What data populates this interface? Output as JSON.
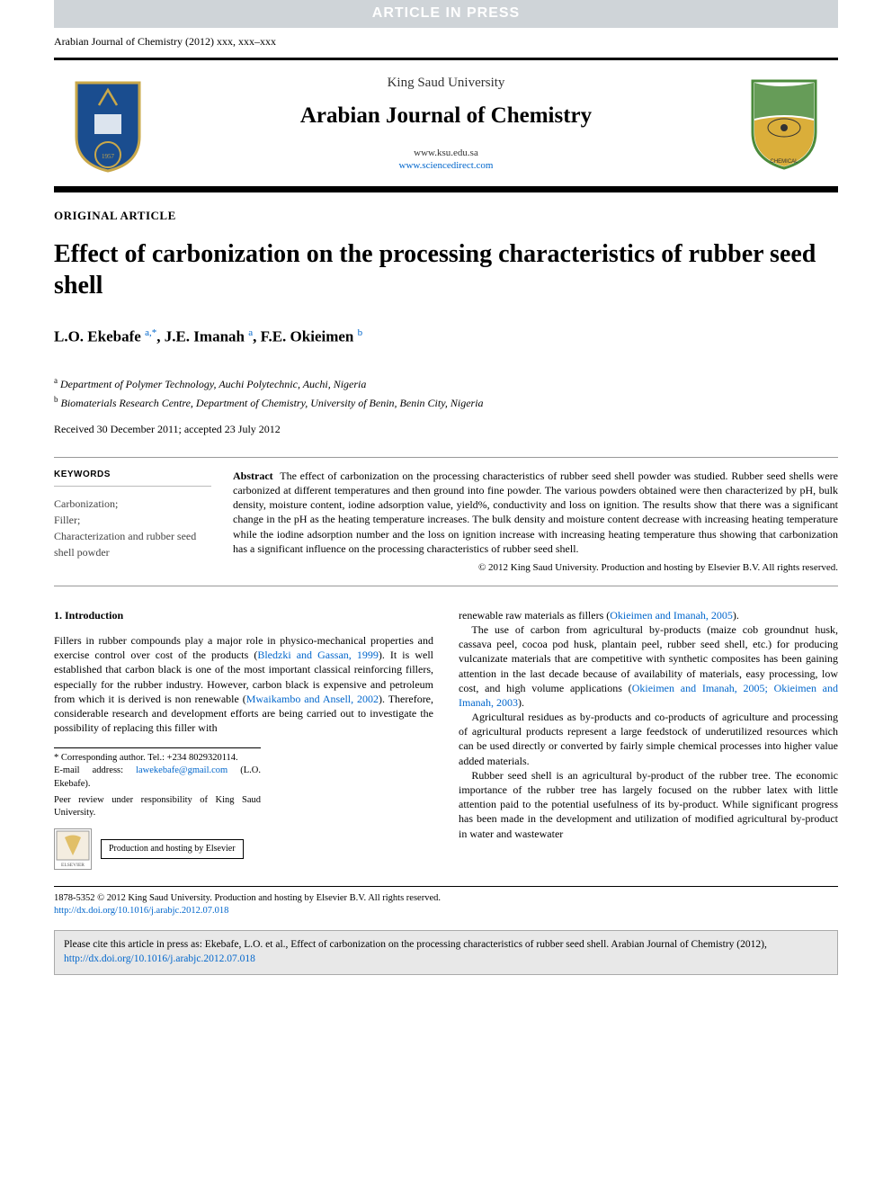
{
  "banner": {
    "text": "ARTICLE IN PRESS"
  },
  "journal_ref": {
    "text": "Arabian Journal of Chemistry (2012) xxx, xxx–xxx"
  },
  "header": {
    "university": "King Saud University",
    "journal": "Arabian Journal of Chemistry",
    "url1": "www.ksu.edu.sa",
    "url2": "www.sciencedirect.com",
    "left_logo": {
      "shield_fill": "#1a4d8f",
      "shield_stroke": "#c9a84a",
      "text": "King Saud University"
    },
    "right_logo": {
      "fill1": "#4b8b3b",
      "fill2": "#d4a017",
      "label": "SAUDI CHEMICAL SOCIETY"
    }
  },
  "article_type": "ORIGINAL ARTICLE",
  "title": "Effect of carbonization on the processing characteristics of rubber seed shell",
  "authors_html": "L.O. Ekebafe <sup>a,*</sup>, J.E. Imanah <sup>a</sup>, F.E. Okieimen <sup>b</sup>",
  "affiliations": [
    {
      "sup": "a",
      "text": "Department of Polymer Technology, Auchi Polytechnic, Auchi, Nigeria"
    },
    {
      "sup": "b",
      "text": "Biomaterials Research Centre, Department of Chemistry, University of Benin, Benin City, Nigeria"
    }
  ],
  "dates": "Received 30 December 2011; accepted 23 July 2012",
  "keywords": {
    "heading": "KEYWORDS",
    "items": "Carbonization;\nFiller;\nCharacterization and rubber seed shell powder"
  },
  "abstract": {
    "label": "Abstract",
    "text": "The effect of carbonization on the processing characteristics of rubber seed shell powder was studied. Rubber seed shells were carbonized at different temperatures and then ground into fine powder. The various powders obtained were then characterized by pH, bulk density, moisture content, iodine adsorption value, yield%, conductivity and loss on ignition. The results show that there was a significant change in the pH as the heating temperature increases. The bulk density and moisture content decrease with increasing heating temperature while the iodine adsorption number and the loss on ignition increase with increasing heating temperature thus showing that carbonization has a significant influence on the processing characteristics of rubber seed shell.",
    "copyright": "© 2012 King Saud University. Production and hosting by Elsevier B.V. All rights reserved."
  },
  "intro": {
    "heading": "1. Introduction",
    "p1a": "Fillers in rubber compounds play a major role in physico-mechanical properties and exercise control over cost of the products (",
    "p1cite": "Bledzki and Gassan, 1999",
    "p1b": "). It is well established that carbon black is one of the most important classical reinforcing fillers, especially for the rubber industry. However, carbon black is expensive and petroleum from which it is derived is non renewable (",
    "p1cite2": "Mwaikambo and Ansell, 2002",
    "p1c": "). Therefore, considerable research and development efforts are being carried out to investigate the possibility of replacing this filler with",
    "p2a": "renewable raw materials as fillers (",
    "p2cite": "Okieimen and Imanah, 2005",
    "p2b": ").",
    "p3a": "The use of carbon from agricultural by-products (maize cob groundnut husk, cassava peel, cocoa pod husk, plantain peel, rubber seed shell, etc.) for producing vulcanizate materials that are competitive with synthetic composites has been gaining attention in the last decade because of availability of materials, easy processing, low cost, and high volume applications (",
    "p3cite": "Okieimen and Imanah, 2005; Okieimen and Imanah, 2003",
    "p3b": ").",
    "p4": "Agricultural residues as by-products and co-products of agriculture and processing of agricultural products represent a large feedstock of underutilized resources which can be used directly or converted by fairly simple chemical processes into higher value added materials.",
    "p5": "Rubber seed shell is an agricultural by-product of the rubber tree. The economic importance of the rubber tree has largely focused on the rubber latex with little attention paid to the potential usefulness of its by-product. While significant progress has been made in the development and utilization of modified agricultural by-product in water and wastewater"
  },
  "footnote": {
    "corr": "* Corresponding author. Tel.: +234 8029320114.",
    "email_label": "E-mail address:",
    "email": "lawekebafe@gmail.com",
    "email_after": "(L.O. Ekebafe).",
    "peer": "Peer review under responsibility of King Saud University.",
    "elsevier_label": "ELSEVIER",
    "prod": "Production and hosting by Elsevier"
  },
  "bottom_copyright": {
    "line1": "1878-5352 © 2012 King Saud University. Production and hosting by Elsevier B.V. All rights reserved.",
    "doi": "http://dx.doi.org/10.1016/j.arabjc.2012.07.018"
  },
  "cite_box": {
    "text_a": "Please cite this article in press as: Ekebafe, L.O. et al., Effect of carbonization on the processing characteristics of rubber seed shell. Arabian Journal of Chemistry (2012), ",
    "doi": "http://dx.doi.org/10.1016/j.arabjc.2012.07.018"
  },
  "colors": {
    "link": "#0066cc",
    "banner_bg": "#cfd4d8",
    "banner_fg": "#ffffff",
    "citebox_bg": "#e8e8e8"
  }
}
